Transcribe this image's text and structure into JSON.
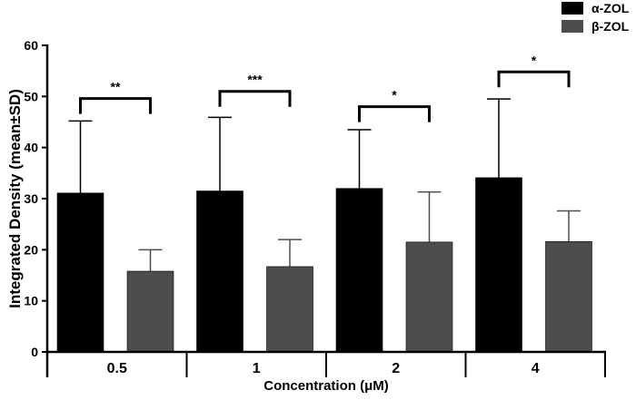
{
  "chart_data": {
    "type": "bar",
    "title": "",
    "xlabel": "Concentration (μM)",
    "ylabel": "Integrated Density (mean±SD)",
    "categories": [
      "0.5",
      "1",
      "2",
      "4"
    ],
    "ylim": [
      0,
      60
    ],
    "yticks": [
      0,
      10,
      20,
      30,
      40,
      50,
      60
    ],
    "grid": false,
    "legend_position": "top-right",
    "series": [
      {
        "name": "α-ZOL",
        "color": "#000000",
        "values": [
          31.1,
          31.5,
          32.0,
          34.1
        ],
        "sd_upper": [
          45.2,
          45.9,
          43.5,
          49.5
        ]
      },
      {
        "name": "β-ZOL",
        "color": "#4d4d4d",
        "values": [
          15.8,
          16.7,
          21.5,
          21.6
        ],
        "sd_upper": [
          20.0,
          22.0,
          31.3,
          27.6
        ]
      }
    ],
    "significance": [
      {
        "category": "0.5",
        "label": "**",
        "level": 49.6
      },
      {
        "category": "1",
        "label": "***",
        "level": 51.0
      },
      {
        "category": "2",
        "label": "*",
        "level": 48.0
      },
      {
        "category": "4",
        "label": "*",
        "level": 54.8
      }
    ]
  }
}
